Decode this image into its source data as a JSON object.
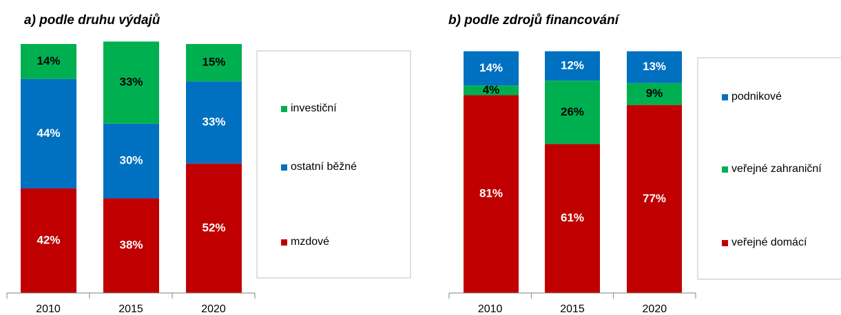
{
  "chart_data": [
    {
      "type": "bar",
      "stacked": true,
      "title": "a) podle druhu výdajů",
      "categories": [
        "2010",
        "2015",
        "2020"
      ],
      "ylim": [
        0,
        100
      ],
      "series": [
        {
          "name": "mzdové",
          "color": "#c00000",
          "label_color": "#ffffff",
          "values": [
            42,
            38,
            52
          ],
          "value_labels": [
            "42%",
            "38%",
            "52%"
          ]
        },
        {
          "name": "ostatní běžné",
          "color": "#0070c0",
          "label_color": "#ffffff",
          "values": [
            44,
            30,
            33
          ],
          "value_labels": [
            "44%",
            "30%",
            "33%"
          ]
        },
        {
          "name": "investiční",
          "color": "#00b050",
          "label_color": "#000000",
          "values": [
            14,
            33,
            15
          ],
          "value_labels": [
            "14%",
            "33%",
            "15%"
          ]
        }
      ]
    },
    {
      "type": "bar",
      "stacked": true,
      "title": "b) podle zdrojů financování",
      "categories": [
        "2010",
        "2015",
        "2020"
      ],
      "ylim": [
        0,
        100
      ],
      "series": [
        {
          "name": "veřejné domácí",
          "color": "#c00000",
          "label_color": "#ffffff",
          "values": [
            81,
            61,
            77
          ],
          "value_labels": [
            "81%",
            "61%",
            "77%"
          ]
        },
        {
          "name": "veřejné zahraniční",
          "color": "#00b050",
          "label_color": "#000000",
          "values": [
            4,
            26,
            9
          ],
          "value_labels": [
            "4%",
            "26%",
            "9%"
          ]
        },
        {
          "name": "podnikové",
          "color": "#0070c0",
          "label_color": "#ffffff",
          "values": [
            14,
            12,
            13
          ],
          "value_labels": [
            "14%",
            "12%",
            "13%"
          ]
        }
      ]
    }
  ]
}
